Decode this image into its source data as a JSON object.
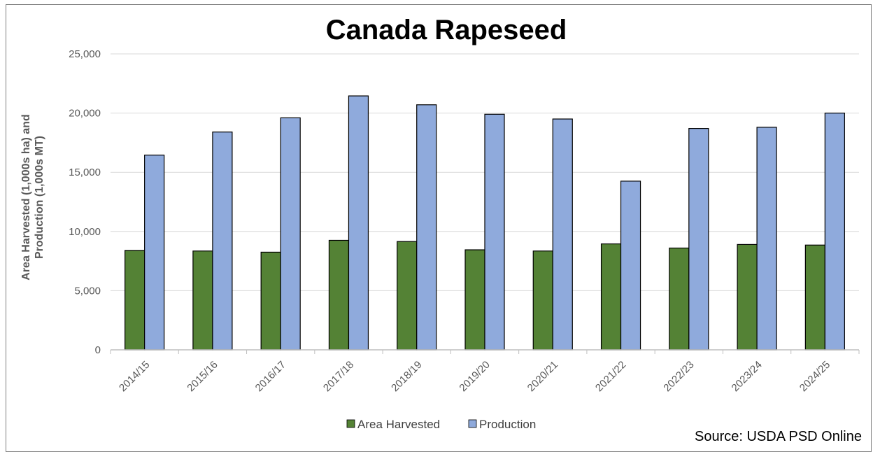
{
  "chart_data": {
    "type": "bar",
    "title": "Canada Rapeseed",
    "ylabel": "Area Harvested (1,000s ha) and Production (1,000s MT)",
    "ylabel_lines": [
      "Area Harvested (1,000s ha) and",
      "Production (1,000s MT)"
    ],
    "xlabel": "",
    "ylim": [
      0,
      25000
    ],
    "yticks": [
      0,
      5000,
      10000,
      15000,
      20000,
      25000
    ],
    "ytick_labels": [
      "0",
      "5,000",
      "10,000",
      "15,000",
      "20,000",
      "25,000"
    ],
    "categories": [
      "2014/15",
      "2015/16",
      "2016/17",
      "2017/18",
      "2018/19",
      "2019/20",
      "2020/21",
      "2021/22",
      "2022/23",
      "2023/24",
      "2024/25"
    ],
    "series": [
      {
        "name": "Area Harvested",
        "color": "#548235",
        "values": [
          8400,
          8350,
          8250,
          9250,
          9150,
          8450,
          8350,
          8950,
          8600,
          8900,
          8850
        ]
      },
      {
        "name": "Production",
        "color": "#8faadc",
        "values": [
          16450,
          18400,
          19600,
          21450,
          20700,
          19900,
          19500,
          14250,
          18700,
          18800,
          20000
        ]
      }
    ],
    "grid": true,
    "legend": "bottom",
    "source": "Source: USDA PSD Online"
  }
}
